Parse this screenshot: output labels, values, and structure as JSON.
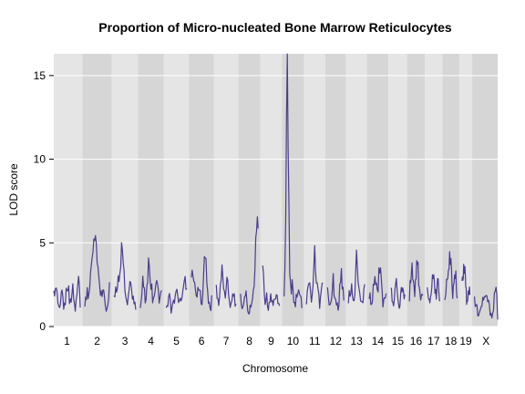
{
  "chart_data": {
    "type": "line",
    "title": "Proportion of Micro-nucleated Bone Marrow Reticulocytes",
    "xlabel": "Chromosome",
    "ylabel": "LOD score",
    "ylim": [
      0,
      16.3
    ],
    "yticks": [
      0,
      5,
      10,
      15
    ],
    "grid": true,
    "colors": {
      "line": "#4b3c8c",
      "band_light": "#e5e5e5",
      "band_dark": "#d6d6d6",
      "grid": "#ffffff"
    },
    "chromosomes": [
      {
        "name": "1",
        "length": 195
      },
      {
        "name": "2",
        "length": 182
      },
      {
        "name": "3",
        "length": 160
      },
      {
        "name": "4",
        "length": 157
      },
      {
        "name": "5",
        "length": 152
      },
      {
        "name": "6",
        "length": 150
      },
      {
        "name": "7",
        "length": 145
      },
      {
        "name": "8",
        "length": 130
      },
      {
        "name": "9",
        "length": 124
      },
      {
        "name": "10",
        "length": 131
      },
      {
        "name": "11",
        "length": 122
      },
      {
        "name": "12",
        "length": 120
      },
      {
        "name": "13",
        "length": 120
      },
      {
        "name": "14",
        "length": 125
      },
      {
        "name": "15",
        "length": 104
      },
      {
        "name": "16",
        "length": 98
      },
      {
        "name": "17",
        "length": 95
      },
      {
        "name": "18",
        "length": 91
      },
      {
        "name": "19",
        "length": 61
      },
      {
        "name": "X",
        "length": 171
      }
    ],
    "series": [
      {
        "chromosome": "1",
        "positions": [
          0,
          20,
          40,
          60,
          80,
          100,
          120,
          140,
          160,
          180,
          195
        ],
        "lod": [
          1.8,
          2.4,
          0.7,
          1.9,
          1.1,
          2.8,
          1.4,
          2.2,
          0.9,
          3.4,
          1.6
        ]
      },
      {
        "chromosome": "2",
        "positions": [
          0,
          20,
          40,
          60,
          80,
          100,
          120,
          140,
          160,
          182
        ],
        "lod": [
          1.2,
          2.0,
          2.6,
          4.7,
          5.2,
          3.0,
          1.8,
          2.4,
          0.8,
          2.2
        ]
      },
      {
        "chromosome": "3",
        "positions": [
          0,
          20,
          40,
          60,
          80,
          100,
          120,
          140,
          160
        ],
        "lod": [
          1.5,
          2.2,
          3.1,
          4.9,
          2.4,
          1.2,
          2.6,
          1.7,
          1.0
        ]
      },
      {
        "chromosome": "4",
        "positions": [
          0,
          20,
          40,
          60,
          80,
          100,
          120,
          140,
          157
        ],
        "lod": [
          0.8,
          2.8,
          1.4,
          3.8,
          2.2,
          1.3,
          2.9,
          1.6,
          2.3
        ]
      },
      {
        "chromosome": "5",
        "positions": [
          0,
          20,
          40,
          60,
          80,
          100,
          120,
          140,
          152
        ],
        "lod": [
          1.0,
          1.8,
          0.7,
          1.6,
          2.3,
          1.2,
          2.0,
          2.7,
          1.8
        ]
      },
      {
        "chromosome": "6",
        "positions": [
          0,
          20,
          40,
          60,
          80,
          100,
          120,
          140,
          150
        ],
        "lod": [
          3.6,
          2.8,
          1.6,
          2.4,
          1.2,
          4.3,
          2.0,
          1.1,
          1.6
        ]
      },
      {
        "chromosome": "7",
        "positions": [
          0,
          20,
          40,
          60,
          80,
          100,
          120,
          145
        ],
        "lod": [
          2.2,
          1.4,
          3.2,
          1.8,
          2.6,
          1.3,
          1.9,
          1.2
        ]
      },
      {
        "chromosome": "8",
        "positions": [
          0,
          20,
          40,
          60,
          80,
          100,
          110,
          120,
          130
        ],
        "lod": [
          1.6,
          1.0,
          2.4,
          0.6,
          1.2,
          2.2,
          4.6,
          6.3,
          5.4
        ]
      },
      {
        "chromosome": "9",
        "positions": [
          0,
          10,
          20,
          30,
          40,
          60,
          80,
          100,
          124
        ],
        "lod": [
          3.9,
          2.2,
          1.2,
          1.8,
          1.1,
          2.0,
          1.3,
          1.9,
          1.5
        ]
      },
      {
        "chromosome": "10",
        "positions": [
          0,
          10,
          15,
          20,
          25,
          28,
          32,
          36,
          40,
          50,
          60,
          80,
          100,
          131
        ],
        "lod": [
          1.8,
          3.8,
          9.2,
          15.3,
          16.0,
          12.1,
          8.3,
          7.2,
          3.6,
          1.8,
          2.5,
          1.2,
          2.0,
          1.5
        ]
      },
      {
        "chromosome": "11",
        "positions": [
          0,
          20,
          40,
          60,
          80,
          100,
          122
        ],
        "lod": [
          1.6,
          2.8,
          1.2,
          4.4,
          2.2,
          1.4,
          2.6
        ]
      },
      {
        "chromosome": "12",
        "positions": [
          0,
          20,
          40,
          60,
          80,
          100,
          120
        ],
        "lod": [
          2.2,
          1.0,
          2.8,
          1.6,
          0.8,
          3.4,
          1.8
        ]
      },
      {
        "chromosome": "13",
        "positions": [
          0,
          20,
          40,
          60,
          80,
          100,
          120
        ],
        "lod": [
          1.4,
          2.4,
          0.9,
          4.0,
          2.0,
          1.2,
          2.6
        ]
      },
      {
        "chromosome": "14",
        "positions": [
          0,
          20,
          40,
          60,
          80,
          100,
          125
        ],
        "lod": [
          2.0,
          1.2,
          3.2,
          1.8,
          3.8,
          1.4,
          2.4
        ]
      },
      {
        "chromosome": "15",
        "positions": [
          0,
          20,
          40,
          60,
          80,
          104
        ],
        "lod": [
          2.4,
          1.4,
          2.8,
          1.0,
          2.2,
          1.6
        ]
      },
      {
        "chromosome": "16",
        "positions": [
          0,
          20,
          40,
          60,
          80,
          98
        ],
        "lod": [
          1.8,
          3.6,
          2.2,
          4.0,
          1.6,
          2.4
        ]
      },
      {
        "chromosome": "17",
        "positions": [
          0,
          20,
          40,
          60,
          80,
          95
        ],
        "lod": [
          2.8,
          1.2,
          3.4,
          1.8,
          2.6,
          1.4
        ]
      },
      {
        "chromosome": "18",
        "positions": [
          0,
          20,
          40,
          60,
          80,
          91
        ],
        "lod": [
          1.4,
          2.8,
          4.2,
          2.0,
          3.6,
          1.6
        ]
      },
      {
        "chromosome": "19",
        "positions": [
          0,
          20,
          40,
          61
        ],
        "lod": [
          2.4,
          3.6,
          1.4,
          2.2
        ]
      },
      {
        "chromosome": "X",
        "positions": [
          0,
          30,
          60,
          90,
          120,
          140,
          160,
          171
        ],
        "lod": [
          1.8,
          0.8,
          1.4,
          2.2,
          0.5,
          1.2,
          2.8,
          0.6
        ]
      }
    ]
  }
}
